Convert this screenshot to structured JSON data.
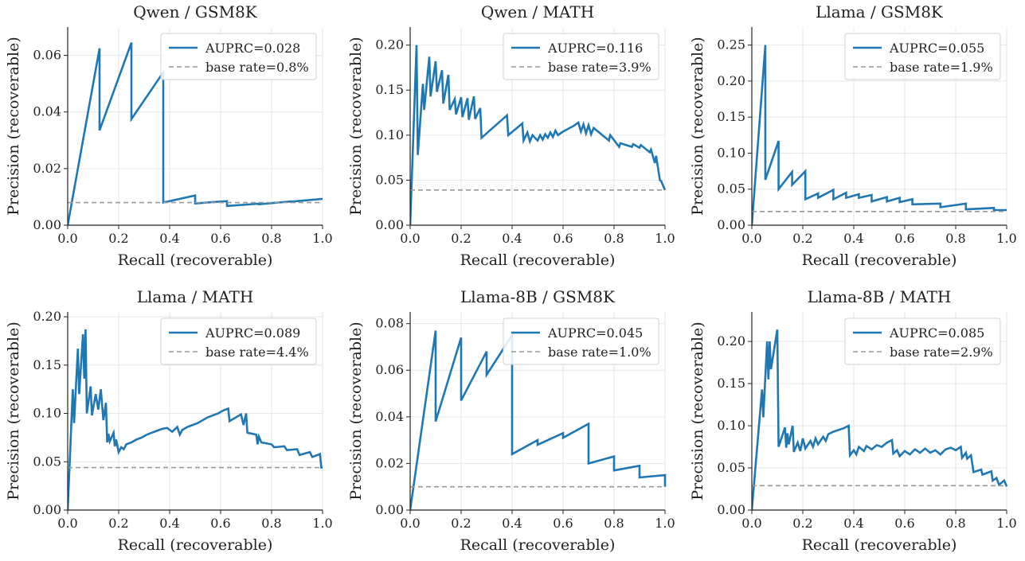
{
  "colors": {
    "pr_curve": "#1f77b4",
    "base_rate": "#999999"
  },
  "chart_data": [
    {
      "type": "line",
      "title": "Qwen / GSM8K",
      "xlabel": "Recall (recoverable)",
      "ylabel": "Precision (recoverable)",
      "xlim": [
        0,
        1.0
      ],
      "ylim": [
        0,
        0.07
      ],
      "xticks": [
        "0.0",
        "0.2",
        "0.4",
        "0.6",
        "0.8",
        "1.0"
      ],
      "yticks": [
        "0.00",
        "0.02",
        "0.04",
        "0.06"
      ],
      "grid": true,
      "legend_position": "top-right",
      "series": [
        {
          "name": "AUPRC=0.028",
          "x": [
            0,
            0.125,
            0.125,
            0.25,
            0.25,
            0.375,
            0.375,
            0.5,
            0.5,
            0.625,
            0.625,
            0.75,
            0.75,
            0.875,
            0.875,
            1.0
          ],
          "y": [
            0,
            0.0625,
            0.0335,
            0.0645,
            0.0375,
            0.054,
            0.008,
            0.0105,
            0.0077,
            0.0085,
            0.0068,
            0.0076,
            0.0074,
            0.0084,
            0.0083,
            0.0093
          ]
        },
        {
          "name": "base rate=0.8%",
          "x": [
            0,
            1.0
          ],
          "y": [
            0.008,
            0.008
          ]
        }
      ]
    },
    {
      "type": "line",
      "title": "Qwen / MATH",
      "xlabel": "Recall (recoverable)",
      "ylabel": "Precision (recoverable)",
      "xlim": [
        0,
        1.0
      ],
      "ylim": [
        0,
        0.22
      ],
      "xticks": [
        "0.0",
        "0.2",
        "0.4",
        "0.6",
        "0.8",
        "1.0"
      ],
      "yticks": [
        "0.00",
        "0.05",
        "0.10",
        "0.15",
        "0.20"
      ],
      "grid": true,
      "legend_position": "top-right",
      "series": [
        {
          "name": "AUPRC=0.116",
          "x": [
            0,
            0.025,
            0.03,
            0.05,
            0.055,
            0.075,
            0.08,
            0.1,
            0.105,
            0.125,
            0.13,
            0.15,
            0.155,
            0.175,
            0.18,
            0.2,
            0.205,
            0.225,
            0.23,
            0.25,
            0.255,
            0.275,
            0.28,
            0.38,
            0.385,
            0.44,
            0.445,
            0.46,
            0.47,
            0.48,
            0.5,
            0.51,
            0.52,
            0.53,
            0.54,
            0.55,
            0.56,
            0.57,
            0.58,
            0.6,
            0.62,
            0.64,
            0.66,
            0.67,
            0.68,
            0.69,
            0.7,
            0.71,
            0.72,
            0.78,
            0.785,
            0.82,
            0.825,
            0.87,
            0.875,
            0.9,
            0.905,
            0.94,
            0.945,
            0.96,
            0.965,
            0.98,
            0.985,
            1.0
          ],
          "y": [
            0,
            0.2,
            0.078,
            0.157,
            0.128,
            0.187,
            0.143,
            0.182,
            0.148,
            0.172,
            0.135,
            0.167,
            0.128,
            0.14,
            0.123,
            0.142,
            0.12,
            0.141,
            0.117,
            0.143,
            0.118,
            0.13,
            0.097,
            0.122,
            0.1,
            0.113,
            0.094,
            0.103,
            0.093,
            0.1,
            0.094,
            0.1,
            0.095,
            0.101,
            0.097,
            0.103,
            0.098,
            0.105,
            0.1,
            0.104,
            0.107,
            0.11,
            0.114,
            0.104,
            0.112,
            0.102,
            0.111,
            0.101,
            0.108,
            0.094,
            0.1,
            0.087,
            0.091,
            0.087,
            0.09,
            0.086,
            0.089,
            0.081,
            0.084,
            0.069,
            0.077,
            0.05,
            0.049,
            0.039
          ]
        },
        {
          "name": "base rate=3.9%",
          "x": [
            0,
            1.0
          ],
          "y": [
            0.039,
            0.039
          ]
        }
      ]
    },
    {
      "type": "line",
      "title": "Llama / GSM8K",
      "xlabel": "Recall (recoverable)",
      "ylabel": "Precision (recoverable)",
      "xlim": [
        0,
        1.0
      ],
      "ylim": [
        0,
        0.275
      ],
      "xticks": [
        "0.0",
        "0.2",
        "0.4",
        "0.6",
        "0.8",
        "1.0"
      ],
      "yticks": [
        "0.00",
        "0.05",
        "0.10",
        "0.15",
        "0.20",
        "0.25"
      ],
      "grid": true,
      "legend_position": "top-right",
      "series": [
        {
          "name": "AUPRC=0.055",
          "x": [
            0,
            0.053,
            0.053,
            0.105,
            0.105,
            0.158,
            0.158,
            0.21,
            0.21,
            0.26,
            0.26,
            0.32,
            0.32,
            0.37,
            0.37,
            0.42,
            0.42,
            0.47,
            0.47,
            0.53,
            0.53,
            0.58,
            0.58,
            0.63,
            0.63,
            0.74,
            0.74,
            0.84,
            0.84,
            0.95,
            0.95,
            1.0
          ],
          "y": [
            0,
            0.25,
            0.063,
            0.117,
            0.05,
            0.074,
            0.056,
            0.075,
            0.036,
            0.044,
            0.038,
            0.049,
            0.036,
            0.045,
            0.038,
            0.043,
            0.038,
            0.042,
            0.033,
            0.039,
            0.033,
            0.038,
            0.032,
            0.036,
            0.029,
            0.03,
            0.025,
            0.03,
            0.022,
            0.024,
            0.021,
            0.021
          ]
        },
        {
          "name": "base rate=1.9%",
          "x": [
            0,
            1.0
          ],
          "y": [
            0.019,
            0.019
          ]
        }
      ]
    },
    {
      "type": "line",
      "title": "Llama / MATH",
      "xlabel": "Recall (recoverable)",
      "ylabel": "Precision (recoverable)",
      "xlim": [
        0,
        1.0
      ],
      "ylim": [
        0,
        0.205
      ],
      "xticks": [
        "0.0",
        "0.2",
        "0.4",
        "0.6",
        "0.8",
        "1.0"
      ],
      "yticks": [
        "0.00",
        "0.05",
        "0.10",
        "0.15",
        "0.20"
      ],
      "grid": true,
      "legend_position": "top-right",
      "series": [
        {
          "name": "AUPRC=0.089",
          "x": [
            0,
            0.02,
            0.025,
            0.04,
            0.045,
            0.06,
            0.065,
            0.07,
            0.075,
            0.09,
            0.095,
            0.11,
            0.12,
            0.13,
            0.14,
            0.15,
            0.155,
            0.16,
            0.165,
            0.18,
            0.185,
            0.19,
            0.2,
            0.21,
            0.22,
            0.23,
            0.25,
            0.27,
            0.29,
            0.31,
            0.33,
            0.35,
            0.37,
            0.39,
            0.41,
            0.43,
            0.44,
            0.45,
            0.47,
            0.49,
            0.51,
            0.53,
            0.55,
            0.57,
            0.59,
            0.61,
            0.62,
            0.63,
            0.635,
            0.68,
            0.69,
            0.7,
            0.705,
            0.74,
            0.745,
            0.75,
            0.76,
            0.8,
            0.81,
            0.85,
            0.86,
            0.9,
            0.91,
            0.95,
            0.96,
            0.99,
            0.995,
            1.0
          ],
          "y": [
            0,
            0.125,
            0.09,
            0.167,
            0.12,
            0.182,
            0.136,
            0.187,
            0.1,
            0.128,
            0.098,
            0.12,
            0.104,
            0.125,
            0.093,
            0.111,
            0.07,
            0.079,
            0.071,
            0.08,
            0.066,
            0.073,
            0.06,
            0.065,
            0.063,
            0.068,
            0.07,
            0.073,
            0.075,
            0.078,
            0.08,
            0.082,
            0.084,
            0.085,
            0.081,
            0.086,
            0.078,
            0.083,
            0.086,
            0.088,
            0.09,
            0.093,
            0.096,
            0.098,
            0.1,
            0.103,
            0.104,
            0.105,
            0.092,
            0.099,
            0.088,
            0.1,
            0.08,
            0.078,
            0.068,
            0.076,
            0.07,
            0.068,
            0.065,
            0.066,
            0.062,
            0.063,
            0.057,
            0.06,
            0.055,
            0.058,
            0.044,
            0.044
          ]
        },
        {
          "name": "base rate=4.4%",
          "x": [
            0,
            1.0
          ],
          "y": [
            0.044,
            0.044
          ]
        }
      ]
    },
    {
      "type": "line",
      "title": "Llama-8B / GSM8K",
      "xlabel": "Recall (recoverable)",
      "ylabel": "Precision (recoverable)",
      "xlim": [
        0,
        1.0
      ],
      "ylim": [
        0,
        0.085
      ],
      "xticks": [
        "0.0",
        "0.2",
        "0.4",
        "0.6",
        "0.8",
        "1.0"
      ],
      "yticks": [
        "0.00",
        "0.02",
        "0.04",
        "0.06",
        "0.08"
      ],
      "grid": true,
      "legend_position": "top-right",
      "series": [
        {
          "name": "AUPRC=0.045",
          "x": [
            0,
            0.1,
            0.1,
            0.2,
            0.2,
            0.3,
            0.3,
            0.4,
            0.4,
            0.5,
            0.5,
            0.6,
            0.6,
            0.7,
            0.7,
            0.8,
            0.8,
            0.9,
            0.9,
            1.0,
            1.0
          ],
          "y": [
            0,
            0.077,
            0.038,
            0.074,
            0.047,
            0.068,
            0.058,
            0.075,
            0.024,
            0.03,
            0.028,
            0.033,
            0.031,
            0.037,
            0.02,
            0.023,
            0.017,
            0.019,
            0.014,
            0.015,
            0.01
          ]
        },
        {
          "name": "base rate=1.0%",
          "x": [
            0,
            1.0
          ],
          "y": [
            0.01,
            0.01
          ]
        }
      ]
    },
    {
      "type": "line",
      "title": "Llama-8B / MATH",
      "xlabel": "Recall (recoverable)",
      "ylabel": "Precision (recoverable)",
      "xlim": [
        0,
        1.0
      ],
      "ylim": [
        0,
        0.235
      ],
      "xticks": [
        "0.0",
        "0.2",
        "0.4",
        "0.6",
        "0.8",
        "1.0"
      ],
      "yticks": [
        "0.00",
        "0.05",
        "0.10",
        "0.15",
        "0.20"
      ],
      "grid": true,
      "legend_position": "top-right",
      "series": [
        {
          "name": "AUPRC=0.085",
          "x": [
            0,
            0.04,
            0.045,
            0.06,
            0.065,
            0.07,
            0.075,
            0.1,
            0.105,
            0.13,
            0.135,
            0.14,
            0.145,
            0.16,
            0.165,
            0.18,
            0.19,
            0.2,
            0.21,
            0.23,
            0.24,
            0.25,
            0.26,
            0.28,
            0.29,
            0.3,
            0.32,
            0.34,
            0.36,
            0.38,
            0.385,
            0.4,
            0.41,
            0.42,
            0.44,
            0.45,
            0.47,
            0.49,
            0.51,
            0.53,
            0.55,
            0.555,
            0.57,
            0.58,
            0.6,
            0.62,
            0.64,
            0.66,
            0.68,
            0.7,
            0.72,
            0.74,
            0.76,
            0.78,
            0.8,
            0.82,
            0.825,
            0.84,
            0.845,
            0.86,
            0.87,
            0.9,
            0.905,
            0.94,
            0.945,
            0.96,
            0.97,
            0.99,
            1.0
          ],
          "y": [
            0,
            0.143,
            0.11,
            0.2,
            0.155,
            0.2,
            0.167,
            0.214,
            0.075,
            0.098,
            0.074,
            0.091,
            0.078,
            0.1,
            0.069,
            0.08,
            0.07,
            0.085,
            0.073,
            0.082,
            0.075,
            0.085,
            0.078,
            0.087,
            0.082,
            0.09,
            0.093,
            0.095,
            0.097,
            0.1,
            0.065,
            0.071,
            0.066,
            0.075,
            0.07,
            0.076,
            0.072,
            0.077,
            0.075,
            0.08,
            0.083,
            0.067,
            0.071,
            0.064,
            0.07,
            0.066,
            0.072,
            0.068,
            0.073,
            0.068,
            0.071,
            0.066,
            0.072,
            0.074,
            0.071,
            0.075,
            0.062,
            0.068,
            0.061,
            0.065,
            0.045,
            0.048,
            0.042,
            0.046,
            0.035,
            0.038,
            0.03,
            0.035,
            0.028
          ]
        },
        {
          "name": "base rate=2.9%",
          "x": [
            0,
            1.0
          ],
          "y": [
            0.029,
            0.029
          ]
        }
      ]
    }
  ]
}
